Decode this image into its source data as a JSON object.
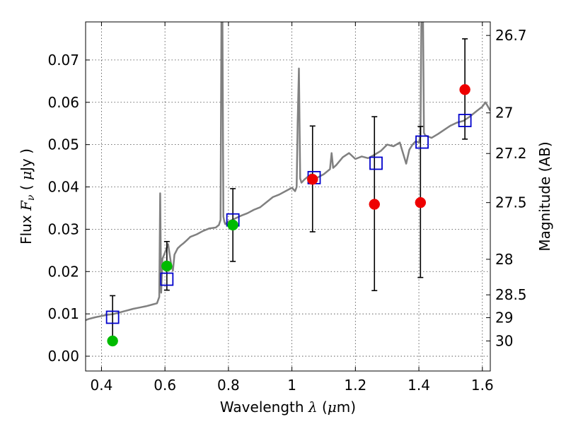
{
  "chart_data": {
    "type": "scatter",
    "xlabel": "Wavelength  λ (μm)",
    "ylabel": "Flux  Fν  ( μJy )",
    "y2label": "Magnitude (AB)",
    "xlim": [
      0.35,
      1.625
    ],
    "ylim": [
      -0.0035,
      0.079
    ],
    "x_ticks": [
      0.4,
      0.6,
      0.8,
      1.0,
      1.2,
      1.4,
      1.6
    ],
    "x_tick_labels": [
      "0.4",
      "0.6",
      "0.8",
      "1",
      "1.2",
      "1.4",
      "1.6"
    ],
    "y_ticks": [
      0.0,
      0.01,
      0.02,
      0.03,
      0.04,
      0.05,
      0.06,
      0.07
    ],
    "y_tick_labels": [
      "0.00",
      "0.01",
      "0.02",
      "0.03",
      "0.04",
      "0.05",
      "0.06",
      "0.07"
    ],
    "magnitude_ticks": [
      {
        "label": "26.7",
        "flux": 0.0758
      },
      {
        "label": "27",
        "flux": 0.0575
      },
      {
        "label": "27.2",
        "flux": 0.0479
      },
      {
        "label": "27.5",
        "flux": 0.0363
      },
      {
        "label": "28",
        "flux": 0.0229
      },
      {
        "label": "28.5",
        "flux": 0.0145
      },
      {
        "label": "29",
        "flux": 0.0091
      },
      {
        "label": "30",
        "flux": 0.0036
      }
    ],
    "grid": true,
    "colors": {
      "model_spectrum": "#808080",
      "model_photometry": "#0000cc",
      "observed_green": "#00bb00",
      "observed_red": "#ee0000",
      "error_bars": "#000000"
    },
    "model_spectrum": {
      "x": [
        0.35,
        0.36,
        0.38,
        0.4,
        0.42,
        0.44,
        0.46,
        0.48,
        0.5,
        0.52,
        0.54,
        0.56,
        0.575,
        0.582,
        0.585,
        0.588,
        0.592,
        0.6,
        0.61,
        0.62,
        0.625,
        0.63,
        0.64,
        0.65,
        0.66,
        0.67,
        0.68,
        0.7,
        0.72,
        0.74,
        0.76,
        0.77,
        0.775,
        0.778,
        0.781,
        0.784,
        0.787,
        0.79,
        0.8,
        0.82,
        0.84,
        0.86,
        0.88,
        0.9,
        0.92,
        0.94,
        0.96,
        0.98,
        1.0,
        1.01,
        1.015,
        1.018,
        1.022,
        1.026,
        1.03,
        1.04,
        1.06,
        1.08,
        1.1,
        1.12,
        1.125,
        1.13,
        1.14,
        1.16,
        1.18,
        1.2,
        1.22,
        1.24,
        1.26,
        1.28,
        1.3,
        1.32,
        1.34,
        1.35,
        1.36,
        1.37,
        1.38,
        1.39,
        1.4,
        1.405,
        1.408,
        1.41,
        1.413,
        1.416,
        1.42,
        1.44,
        1.46,
        1.48,
        1.5,
        1.52,
        1.54,
        1.56,
        1.58,
        1.6,
        1.61,
        1.625
      ],
      "y": [
        0.0085,
        0.0088,
        0.0092,
        0.0095,
        0.0098,
        0.01,
        0.0104,
        0.0108,
        0.0112,
        0.0115,
        0.0118,
        0.0122,
        0.0125,
        0.014,
        0.0385,
        0.015,
        0.023,
        0.0245,
        0.0265,
        0.0215,
        0.0202,
        0.024,
        0.0255,
        0.0262,
        0.0268,
        0.0275,
        0.0282,
        0.0288,
        0.0296,
        0.0302,
        0.0304,
        0.031,
        0.0322,
        0.08,
        0.08,
        0.033,
        0.0318,
        0.0312,
        0.0318,
        0.0325,
        0.0332,
        0.0338,
        0.0346,
        0.0352,
        0.0364,
        0.0376,
        0.0382,
        0.039,
        0.0398,
        0.039,
        0.04,
        0.055,
        0.068,
        0.042,
        0.041,
        0.0418,
        0.043,
        0.0422,
        0.043,
        0.0442,
        0.048,
        0.0445,
        0.0452,
        0.047,
        0.048,
        0.0466,
        0.0472,
        0.0468,
        0.0476,
        0.0485,
        0.05,
        0.0496,
        0.0505,
        0.048,
        0.0455,
        0.0488,
        0.05,
        0.0508,
        0.0505,
        0.052,
        0.08,
        0.08,
        0.08,
        0.0528,
        0.0522,
        0.0516,
        0.0525,
        0.0535,
        0.0545,
        0.0552,
        0.0556,
        0.0566,
        0.0578,
        0.059,
        0.06,
        0.058
      ]
    },
    "model_photometry": {
      "x": [
        0.435,
        0.606,
        0.814,
        1.07,
        1.265,
        1.41,
        1.545
      ],
      "y": [
        0.0092,
        0.0182,
        0.0322,
        0.0422,
        0.0456,
        0.0506,
        0.0557
      ]
    },
    "observed_photometry": [
      {
        "x": 0.435,
        "y": 0.0036,
        "yerr_low": 0.0036,
        "yerr_high": 0.0143,
        "color": "green"
      },
      {
        "x": 0.606,
        "y": 0.0213,
        "yerr_low": 0.0156,
        "yerr_high": 0.0271,
        "color": "green"
      },
      {
        "x": 0.814,
        "y": 0.031,
        "yerr_low": 0.0224,
        "yerr_high": 0.0396,
        "color": "green"
      },
      {
        "x": 1.065,
        "y": 0.0418,
        "yerr_low": 0.0294,
        "yerr_high": 0.0544,
        "color": "red"
      },
      {
        "x": 1.26,
        "y": 0.0359,
        "yerr_low": 0.0155,
        "yerr_high": 0.0566,
        "color": "red"
      },
      {
        "x": 1.405,
        "y": 0.0363,
        "yerr_low": 0.0186,
        "yerr_high": 0.0543,
        "color": "red"
      },
      {
        "x": 1.545,
        "y": 0.063,
        "yerr_low": 0.0513,
        "yerr_high": 0.075,
        "color": "red"
      }
    ]
  }
}
